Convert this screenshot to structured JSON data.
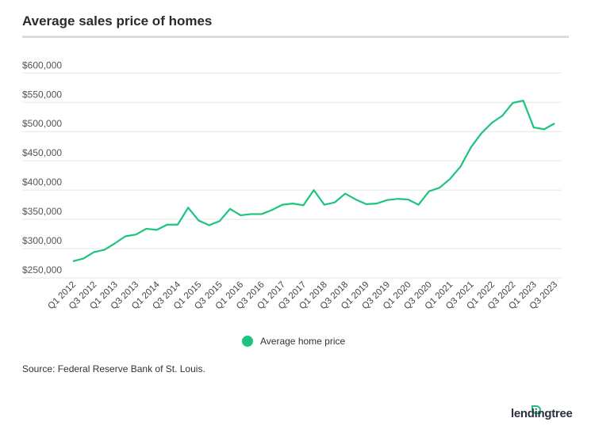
{
  "header": {
    "title": "Average sales price of homes"
  },
  "footer": {
    "source": "Source: Federal Reserve Bank of St. Louis.",
    "logo": "lendingtree"
  },
  "chart_data": {
    "type": "line",
    "title": "Average sales price of homes",
    "xlabel": "",
    "ylabel": "",
    "ylim": [
      250000,
      600000
    ],
    "yticks": [
      250000,
      300000,
      350000,
      400000,
      450000,
      500000,
      550000,
      600000
    ],
    "ytick_labels": [
      "$250,000",
      "$300,000",
      "$350,000",
      "$400,000",
      "$450,000",
      "$500,000",
      "$550,000",
      "$600,000"
    ],
    "grid": true,
    "legend_position": "bottom",
    "line_color": "#1dc47d",
    "x": [
      "Q1 2012",
      "Q2 2012",
      "Q3 2012",
      "Q4 2012",
      "Q1 2013",
      "Q2 2013",
      "Q3 2013",
      "Q4 2013",
      "Q1 2014",
      "Q2 2014",
      "Q3 2014",
      "Q4 2014",
      "Q1 2015",
      "Q2 2015",
      "Q3 2015",
      "Q4 2015",
      "Q1 2016",
      "Q2 2016",
      "Q3 2016",
      "Q4 2016",
      "Q1 2017",
      "Q2 2017",
      "Q3 2017",
      "Q4 2017",
      "Q1 2018",
      "Q2 2018",
      "Q3 2018",
      "Q4 2018",
      "Q1 2019",
      "Q2 2019",
      "Q3 2019",
      "Q4 2019",
      "Q1 2020",
      "Q2 2020",
      "Q3 2020",
      "Q4 2020",
      "Q1 2021",
      "Q2 2021",
      "Q3 2021",
      "Q4 2021",
      "Q1 2022",
      "Q2 2022",
      "Q3 2022",
      "Q4 2022",
      "Q1 2023",
      "Q2 2023",
      "Q3 2023"
    ],
    "xtick_labels": [
      "Q1 2012",
      "Q3 2012",
      "Q1 2013",
      "Q3 2013",
      "Q1 2014",
      "Q3 2014",
      "Q1 2015",
      "Q3 2015",
      "Q1 2016",
      "Q3 2016",
      "Q1 2017",
      "Q3 2017",
      "Q1 2018",
      "Q3 2018",
      "Q1 2019",
      "Q3 2019",
      "Q1 2020",
      "Q3 2020",
      "Q1 2021",
      "Q3 2021",
      "Q1 2022",
      "Q3 2022",
      "Q1 2023",
      "Q3 2023"
    ],
    "series": [
      {
        "name": "Average home price",
        "values": [
          278500,
          283000,
          294000,
          298000,
          309000,
          321000,
          324000,
          334000,
          332000,
          341000,
          341000,
          370000,
          348000,
          340000,
          347000,
          368000,
          357000,
          359000,
          359000,
          366000,
          375000,
          377000,
          374000,
          400000,
          375000,
          379000,
          394000,
          384000,
          376000,
          377000,
          383000,
          385000,
          384000,
          375000,
          398000,
          404000,
          419000,
          440000,
          473000,
          497000,
          515000,
          527000,
          549000,
          553000,
          507000,
          504000,
          514000
        ]
      }
    ]
  }
}
